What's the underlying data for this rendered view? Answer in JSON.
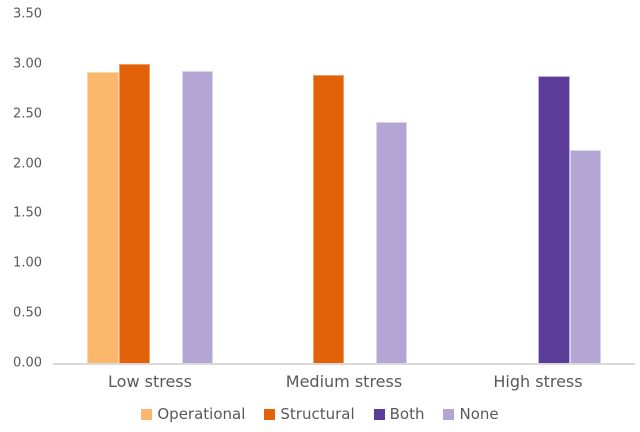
{
  "chart_data": {
    "type": "bar",
    "categories": [
      "Low stress",
      "Medium stress",
      "High stress"
    ],
    "series": [
      {
        "name": "Operational",
        "values": [
          2.92,
          null,
          null
        ],
        "color": "#FBB86C",
        "border_color": "#FDD6A6"
      },
      {
        "name": "Structural",
        "values": [
          3.0,
          2.89,
          null
        ],
        "color": "#E36209",
        "border_color": "#F09B5F"
      },
      {
        "name": "Both",
        "values": [
          null,
          null,
          2.88
        ],
        "color": "#5C3C99",
        "border_color": "#BFB1DC"
      },
      {
        "name": "None",
        "values": [
          2.93,
          2.42,
          2.14
        ],
        "color": "#B3A6D4",
        "border_color": "#DAD3EC"
      }
    ],
    "ylim": [
      0,
      3.5
    ],
    "yticks": [
      {
        "value": 0.0,
        "label": "0.00"
      },
      {
        "value": 0.5,
        "label": "0.50"
      },
      {
        "value": 1.0,
        "label": "1.00"
      },
      {
        "value": 1.5,
        "label": "1.50"
      },
      {
        "value": 2.0,
        "label": "2.00"
      },
      {
        "value": 2.5,
        "label": "2.50"
      },
      {
        "value": 3.0,
        "label": "3.00"
      },
      {
        "value": 3.5,
        "label": "3.50"
      }
    ],
    "grid": false,
    "legend_position": "bottom"
  },
  "colors": {
    "text": "#595959",
    "axis_line": "#D9D9D9",
    "background": "#FFFFFF"
  }
}
